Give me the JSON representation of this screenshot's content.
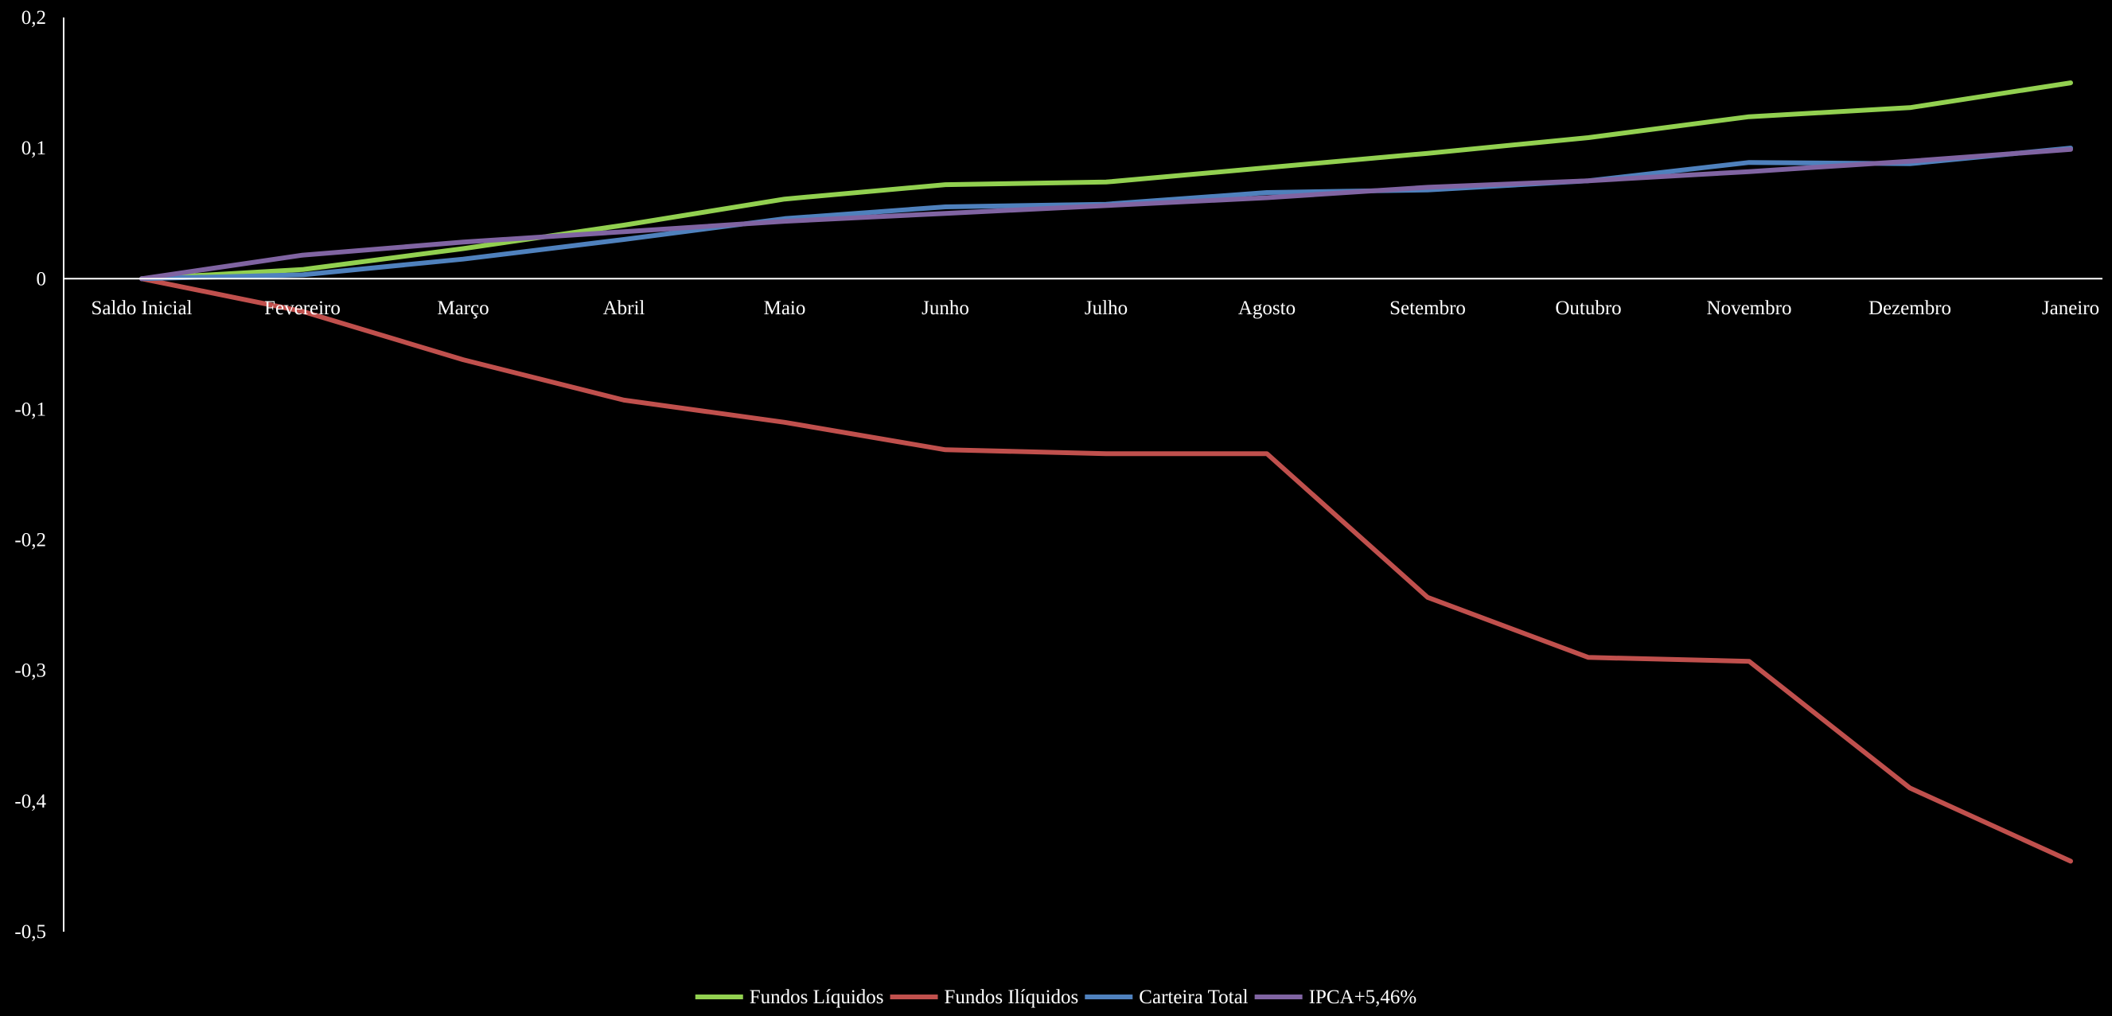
{
  "chart_data": {
    "type": "line",
    "categories": [
      "Saldo Inicial",
      "Fevereiro",
      "Março",
      "Abril",
      "Maio",
      "Junho",
      "Julho",
      "Agosto",
      "Setembro",
      "Outubro",
      "Novembro",
      "Dezembro",
      "Janeiro"
    ],
    "ylim": [
      -0.5,
      0.2
    ],
    "yticks": [
      {
        "value": 0.2,
        "label": "0,2"
      },
      {
        "value": 0.1,
        "label": "0,1"
      },
      {
        "value": 0,
        "label": "0"
      },
      {
        "value": -0.1,
        "label": "-0,1"
      },
      {
        "value": -0.2,
        "label": "-0,2"
      },
      {
        "value": -0.3,
        "label": "-0,3"
      },
      {
        "value": -0.4,
        "label": "-0,4"
      },
      {
        "value": -0.5,
        "label": "-0,5"
      }
    ],
    "grid": false,
    "legend_position": "bottom",
    "series": [
      {
        "name": "Fundos Líquidos",
        "color": "#92d050",
        "values": [
          0,
          0.007,
          0.023,
          0.041,
          0.061,
          0.072,
          0.074,
          0.085,
          0.096,
          0.108,
          0.124,
          0.131,
          0.15
        ]
      },
      {
        "name": "Fundos Ilíquidos",
        "color": "#c0504d",
        "values": [
          0,
          -0.025,
          -0.062,
          -0.093,
          -0.11,
          -0.131,
          -0.134,
          -0.134,
          -0.244,
          -0.29,
          -0.293,
          -0.39,
          -0.446
        ]
      },
      {
        "name": "Carteira Total",
        "color": "#4f81bd",
        "values": [
          0,
          0.003,
          0.015,
          0.03,
          0.046,
          0.055,
          0.057,
          0.066,
          0.068,
          0.075,
          0.089,
          0.088,
          0.1
        ]
      },
      {
        "name": "IPCA+5,46%",
        "color": "#8064a2",
        "values": [
          0,
          0.018,
          0.028,
          0.036,
          0.044,
          0.05,
          0.056,
          0.062,
          0.07,
          0.075,
          0.082,
          0.09,
          0.099
        ]
      }
    ]
  }
}
